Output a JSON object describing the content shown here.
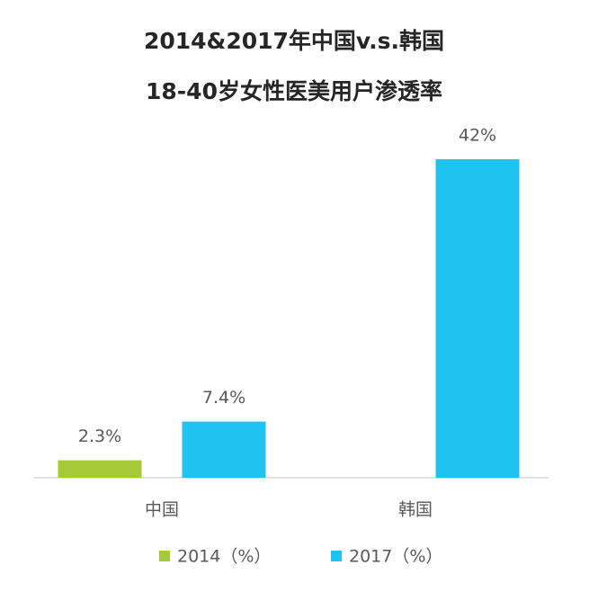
{
  "chart_data": {
    "type": "bar",
    "title": "2014&2017年中国v.s.韩国",
    "subtitle": "18-40岁女性医美用户渗透率",
    "categories": [
      "中国",
      "韩国"
    ],
    "series": [
      {
        "name": "2014（%）",
        "color": "#a6c93a",
        "values": [
          2.3,
          null
        ],
        "value_labels": [
          "2.3%",
          null
        ]
      },
      {
        "name": "2017（%）",
        "color": "#1fc3ef",
        "values": [
          7.4,
          42
        ],
        "value_labels": [
          "7.4%",
          "42%"
        ]
      }
    ],
    "legend": "bottom"
  }
}
